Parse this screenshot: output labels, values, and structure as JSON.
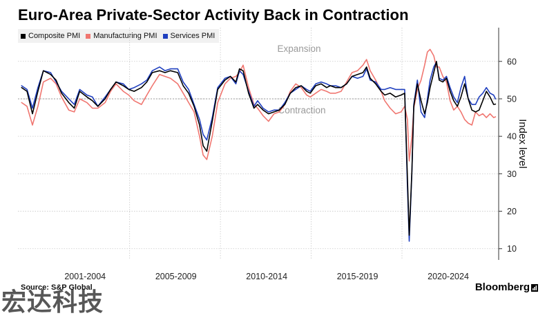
{
  "title": "Euro-Area Private-Sector Activity Back in Contraction",
  "source": "Source: S&P Global",
  "brand": "Bloomberg",
  "watermark": "宏达科技",
  "colors": {
    "composite": "#000000",
    "manufacturing": "#f07670",
    "services": "#1f3fbf",
    "grid": "#c8c8c8",
    "axis": "#333333",
    "annotation": "#9a9a9a"
  },
  "chart_data": {
    "type": "line",
    "title": "Euro-Area Private-Sector Activity Back in Contraction",
    "ylabel": "Index level",
    "xlabel": "",
    "ylim": [
      7,
      69
    ],
    "xlim": [
      1998.8,
      2025.2
    ],
    "yticks": [
      10,
      20,
      30,
      40,
      50,
      60
    ],
    "x_tick_labels": [
      "2001-2004",
      "2005-2009",
      "2010-2014",
      "2015-2019",
      "2020-2024"
    ],
    "reference_line": 50,
    "annotations": [
      "Expansion",
      "Contraction"
    ],
    "grid": true,
    "legend_position": "top-left",
    "series": [
      {
        "name": "Composite PMI",
        "key": "composite",
        "points": [
          [
            1999.0,
            53.0
          ],
          [
            1999.3,
            52.0
          ],
          [
            1999.6,
            46.0
          ],
          [
            1999.9,
            52.0
          ],
          [
            2000.2,
            57.5
          ],
          [
            2000.6,
            56.5
          ],
          [
            2000.9,
            55.0
          ],
          [
            2001.2,
            51.5
          ],
          [
            2001.6,
            49.0
          ],
          [
            2001.9,
            47.5
          ],
          [
            2002.2,
            52.0
          ],
          [
            2002.6,
            50.5
          ],
          [
            2002.9,
            49.5
          ],
          [
            2003.2,
            48.0
          ],
          [
            2003.6,
            50.0
          ],
          [
            2003.9,
            52.5
          ],
          [
            2004.2,
            54.5
          ],
          [
            2004.6,
            53.5
          ],
          [
            2004.9,
            52.5
          ],
          [
            2005.2,
            52.0
          ],
          [
            2005.6,
            53.0
          ],
          [
            2005.9,
            54.5
          ],
          [
            2006.2,
            57.0
          ],
          [
            2006.6,
            57.5
          ],
          [
            2006.9,
            57.0
          ],
          [
            2007.2,
            57.5
          ],
          [
            2007.6,
            57.0
          ],
          [
            2007.9,
            53.5
          ],
          [
            2008.2,
            51.5
          ],
          [
            2008.5,
            48.0
          ],
          [
            2008.8,
            43.0
          ],
          [
            2009.0,
            37.5
          ],
          [
            2009.2,
            36.0
          ],
          [
            2009.5,
            44.0
          ],
          [
            2009.8,
            52.5
          ],
          [
            2010.2,
            55.0
          ],
          [
            2010.5,
            56.0
          ],
          [
            2010.8,
            54.5
          ],
          [
            2011.0,
            58.0
          ],
          [
            2011.2,
            57.5
          ],
          [
            2011.5,
            51.5
          ],
          [
            2011.8,
            47.5
          ],
          [
            2012.0,
            48.5
          ],
          [
            2012.3,
            47.0
          ],
          [
            2012.6,
            46.0
          ],
          [
            2012.9,
            46.5
          ],
          [
            2013.2,
            47.0
          ],
          [
            2013.5,
            48.5
          ],
          [
            2013.8,
            51.5
          ],
          [
            2014.1,
            53.0
          ],
          [
            2014.4,
            53.5
          ],
          [
            2014.7,
            52.0
          ],
          [
            2014.9,
            51.5
          ],
          [
            2015.2,
            53.5
          ],
          [
            2015.5,
            54.0
          ],
          [
            2015.8,
            53.0
          ],
          [
            2016.0,
            53.5
          ],
          [
            2016.3,
            53.0
          ],
          [
            2016.6,
            53.0
          ],
          [
            2016.9,
            54.0
          ],
          [
            2017.2,
            56.0
          ],
          [
            2017.5,
            56.5
          ],
          [
            2017.8,
            57.0
          ],
          [
            2018.0,
            58.5
          ],
          [
            2018.2,
            55.5
          ],
          [
            2018.5,
            54.0
          ],
          [
            2018.8,
            52.0
          ],
          [
            2019.0,
            51.0
          ],
          [
            2019.3,
            51.5
          ],
          [
            2019.6,
            50.5
          ],
          [
            2019.9,
            51.0
          ],
          [
            2020.1,
            51.5
          ],
          [
            2020.25,
            29.0
          ],
          [
            2020.35,
            13.6
          ],
          [
            2020.5,
            31.0
          ],
          [
            2020.6,
            48.0
          ],
          [
            2020.8,
            54.0
          ],
          [
            2021.0,
            49.5
          ],
          [
            2021.2,
            46.0
          ],
          [
            2021.35,
            49.0
          ],
          [
            2021.5,
            53.0
          ],
          [
            2021.7,
            57.0
          ],
          [
            2021.85,
            60.0
          ],
          [
            2022.0,
            55.0
          ],
          [
            2022.2,
            54.5
          ],
          [
            2022.4,
            55.5
          ],
          [
            2022.6,
            52.0
          ],
          [
            2022.8,
            49.5
          ],
          [
            2023.0,
            48.0
          ],
          [
            2023.2,
            50.5
          ],
          [
            2023.4,
            54.0
          ],
          [
            2023.6,
            50.0
          ],
          [
            2023.8,
            47.0
          ],
          [
            2024.0,
            46.5
          ],
          [
            2024.2,
            47.0
          ],
          [
            2024.4,
            49.5
          ],
          [
            2024.6,
            52.0
          ],
          [
            2024.8,
            50.5
          ],
          [
            2025.0,
            48.5
          ],
          [
            2025.1,
            48.6
          ]
        ]
      },
      {
        "name": "Manufacturing PMI",
        "key": "manufacturing",
        "points": [
          [
            1999.0,
            49.0
          ],
          [
            1999.3,
            48.0
          ],
          [
            1999.6,
            43.0
          ],
          [
            1999.9,
            48.0
          ],
          [
            2000.2,
            54.5
          ],
          [
            2000.6,
            55.5
          ],
          [
            2000.9,
            54.0
          ],
          [
            2001.2,
            50.5
          ],
          [
            2001.6,
            47.0
          ],
          [
            2001.9,
            46.5
          ],
          [
            2002.2,
            50.0
          ],
          [
            2002.6,
            49.0
          ],
          [
            2002.9,
            47.5
          ],
          [
            2003.2,
            47.5
          ],
          [
            2003.6,
            49.0
          ],
          [
            2003.9,
            52.0
          ],
          [
            2004.2,
            54.0
          ],
          [
            2004.6,
            52.0
          ],
          [
            2004.9,
            51.0
          ],
          [
            2005.2,
            49.5
          ],
          [
            2005.6,
            48.5
          ],
          [
            2005.9,
            51.0
          ],
          [
            2006.2,
            53.5
          ],
          [
            2006.6,
            56.5
          ],
          [
            2006.9,
            56.0
          ],
          [
            2007.2,
            55.5
          ],
          [
            2007.6,
            54.0
          ],
          [
            2007.9,
            51.5
          ],
          [
            2008.2,
            49.0
          ],
          [
            2008.5,
            46.5
          ],
          [
            2008.8,
            40.0
          ],
          [
            2009.0,
            35.0
          ],
          [
            2009.2,
            33.8
          ],
          [
            2009.5,
            40.0
          ],
          [
            2009.8,
            49.0
          ],
          [
            2010.2,
            54.0
          ],
          [
            2010.5,
            55.5
          ],
          [
            2010.8,
            56.0
          ],
          [
            2011.0,
            57.0
          ],
          [
            2011.2,
            59.0
          ],
          [
            2011.5,
            53.0
          ],
          [
            2011.8,
            48.5
          ],
          [
            2012.0,
            47.5
          ],
          [
            2012.3,
            45.5
          ],
          [
            2012.6,
            44.0
          ],
          [
            2012.9,
            46.0
          ],
          [
            2013.2,
            46.5
          ],
          [
            2013.5,
            48.5
          ],
          [
            2013.8,
            52.0
          ],
          [
            2014.1,
            54.0
          ],
          [
            2014.4,
            53.0
          ],
          [
            2014.7,
            51.0
          ],
          [
            2014.9,
            50.5
          ],
          [
            2015.2,
            51.5
          ],
          [
            2015.5,
            52.5
          ],
          [
            2015.8,
            52.0
          ],
          [
            2016.0,
            51.5
          ],
          [
            2016.3,
            51.5
          ],
          [
            2016.6,
            52.0
          ],
          [
            2016.9,
            54.5
          ],
          [
            2017.2,
            57.0
          ],
          [
            2017.5,
            57.5
          ],
          [
            2017.8,
            59.0
          ],
          [
            2018.0,
            60.5
          ],
          [
            2018.2,
            57.5
          ],
          [
            2018.5,
            55.0
          ],
          [
            2018.8,
            52.0
          ],
          [
            2019.0,
            49.5
          ],
          [
            2019.3,
            47.5
          ],
          [
            2019.6,
            46.0
          ],
          [
            2019.9,
            46.5
          ],
          [
            2020.1,
            48.0
          ],
          [
            2020.25,
            44.5
          ],
          [
            2020.35,
            33.4
          ],
          [
            2020.5,
            40.0
          ],
          [
            2020.6,
            47.5
          ],
          [
            2020.8,
            52.5
          ],
          [
            2021.0,
            55.0
          ],
          [
            2021.2,
            59.0
          ],
          [
            2021.35,
            62.5
          ],
          [
            2021.5,
            63.2
          ],
          [
            2021.7,
            61.5
          ],
          [
            2021.85,
            58.5
          ],
          [
            2022.0,
            58.5
          ],
          [
            2022.2,
            56.0
          ],
          [
            2022.4,
            54.5
          ],
          [
            2022.6,
            49.5
          ],
          [
            2022.8,
            47.0
          ],
          [
            2023.0,
            48.0
          ],
          [
            2023.2,
            46.5
          ],
          [
            2023.4,
            44.5
          ],
          [
            2023.6,
            43.5
          ],
          [
            2023.8,
            43.0
          ],
          [
            2024.0,
            46.5
          ],
          [
            2024.2,
            45.5
          ],
          [
            2024.4,
            46.0
          ],
          [
            2024.6,
            45.0
          ],
          [
            2024.8,
            46.0
          ],
          [
            2025.0,
            45.0
          ],
          [
            2025.1,
            45.2
          ]
        ]
      },
      {
        "name": "Services PMI",
        "key": "services",
        "points": [
          [
            1999.0,
            53.5
          ],
          [
            1999.3,
            52.5
          ],
          [
            1999.6,
            47.5
          ],
          [
            1999.9,
            53.0
          ],
          [
            2000.2,
            57.5
          ],
          [
            2000.6,
            57.0
          ],
          [
            2000.9,
            54.5
          ],
          [
            2001.2,
            52.0
          ],
          [
            2001.6,
            50.0
          ],
          [
            2001.9,
            48.5
          ],
          [
            2002.2,
            52.5
          ],
          [
            2002.6,
            51.0
          ],
          [
            2002.9,
            50.5
          ],
          [
            2003.2,
            48.0
          ],
          [
            2003.6,
            50.5
          ],
          [
            2003.9,
            52.5
          ],
          [
            2004.2,
            54.5
          ],
          [
            2004.6,
            54.0
          ],
          [
            2004.9,
            52.5
          ],
          [
            2005.2,
            53.0
          ],
          [
            2005.6,
            54.0
          ],
          [
            2005.9,
            55.0
          ],
          [
            2006.2,
            57.5
          ],
          [
            2006.6,
            58.5
          ],
          [
            2006.9,
            57.5
          ],
          [
            2007.2,
            58.0
          ],
          [
            2007.6,
            58.0
          ],
          [
            2007.9,
            54.5
          ],
          [
            2008.2,
            52.5
          ],
          [
            2008.5,
            48.5
          ],
          [
            2008.8,
            44.5
          ],
          [
            2009.0,
            40.5
          ],
          [
            2009.2,
            39.0
          ],
          [
            2009.5,
            45.0
          ],
          [
            2009.8,
            53.0
          ],
          [
            2010.2,
            55.5
          ],
          [
            2010.5,
            56.0
          ],
          [
            2010.8,
            54.0
          ],
          [
            2011.0,
            57.5
          ],
          [
            2011.2,
            56.5
          ],
          [
            2011.5,
            52.0
          ],
          [
            2011.8,
            48.0
          ],
          [
            2012.0,
            49.5
          ],
          [
            2012.3,
            47.5
          ],
          [
            2012.6,
            46.5
          ],
          [
            2012.9,
            47.0
          ],
          [
            2013.2,
            47.0
          ],
          [
            2013.5,
            49.0
          ],
          [
            2013.8,
            51.5
          ],
          [
            2014.1,
            52.5
          ],
          [
            2014.4,
            53.5
          ],
          [
            2014.7,
            52.5
          ],
          [
            2014.9,
            52.0
          ],
          [
            2015.2,
            54.0
          ],
          [
            2015.5,
            54.5
          ],
          [
            2015.8,
            54.0
          ],
          [
            2016.0,
            53.5
          ],
          [
            2016.3,
            53.5
          ],
          [
            2016.6,
            53.0
          ],
          [
            2016.9,
            54.0
          ],
          [
            2017.2,
            56.0
          ],
          [
            2017.5,
            55.5
          ],
          [
            2017.8,
            56.0
          ],
          [
            2018.0,
            58.0
          ],
          [
            2018.2,
            55.0
          ],
          [
            2018.5,
            54.5
          ],
          [
            2018.8,
            52.5
          ],
          [
            2019.0,
            52.5
          ],
          [
            2019.3,
            53.0
          ],
          [
            2019.6,
            52.5
          ],
          [
            2019.9,
            52.5
          ],
          [
            2020.1,
            52.5
          ],
          [
            2020.25,
            26.5
          ],
          [
            2020.35,
            12.0
          ],
          [
            2020.5,
            30.5
          ],
          [
            2020.6,
            48.5
          ],
          [
            2020.8,
            55.0
          ],
          [
            2021.0,
            46.5
          ],
          [
            2021.2,
            45.0
          ],
          [
            2021.35,
            50.0
          ],
          [
            2021.5,
            55.0
          ],
          [
            2021.7,
            58.5
          ],
          [
            2021.85,
            59.8
          ],
          [
            2022.0,
            55.5
          ],
          [
            2022.2,
            55.0
          ],
          [
            2022.4,
            56.0
          ],
          [
            2022.6,
            53.0
          ],
          [
            2022.8,
            50.5
          ],
          [
            2023.0,
            49.0
          ],
          [
            2023.2,
            53.0
          ],
          [
            2023.4,
            56.0
          ],
          [
            2023.6,
            50.0
          ],
          [
            2023.8,
            48.5
          ],
          [
            2024.0,
            48.5
          ],
          [
            2024.2,
            50.5
          ],
          [
            2024.4,
            51.5
          ],
          [
            2024.6,
            53.0
          ],
          [
            2024.8,
            51.5
          ],
          [
            2025.0,
            51.0
          ],
          [
            2025.1,
            50.0
          ]
        ]
      }
    ]
  }
}
